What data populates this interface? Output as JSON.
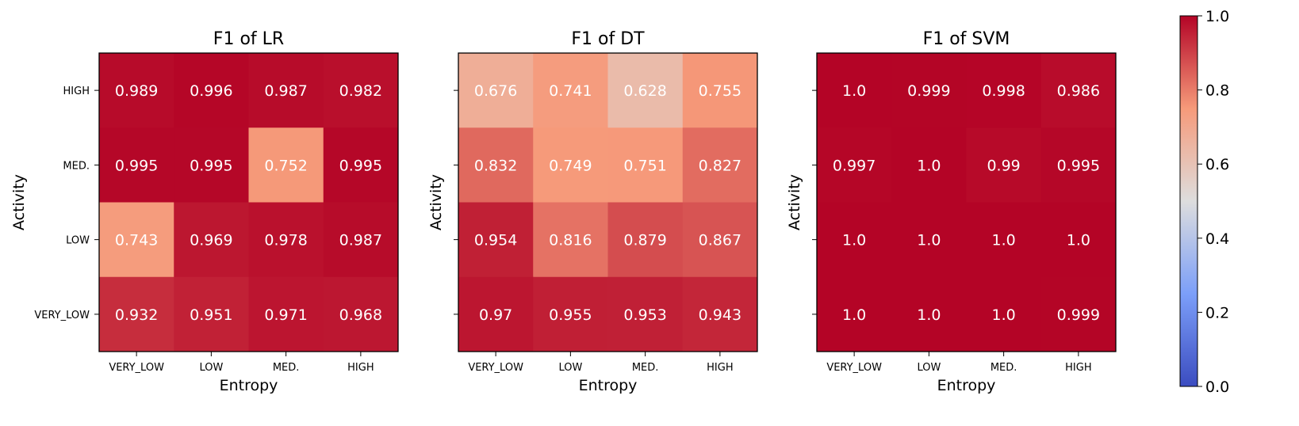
{
  "chart_data": {
    "type": "heatmap",
    "colormap": "coolwarm",
    "vmin": 0.0,
    "vmax": 1.0,
    "colorbar_ticks": [
      "0.0",
      "0.2",
      "0.4",
      "0.6",
      "0.8",
      "1.0"
    ],
    "panels": [
      {
        "title": "F1 of LR",
        "xlabel": "Entropy",
        "ylabel": "Activity",
        "x_categories": [
          "VERY_LOW",
          "LOW",
          "MED.",
          "HIGH"
        ],
        "y_categories": [
          "HIGH",
          "MED.",
          "LOW",
          "VERY_LOW"
        ],
        "values": [
          [
            0.989,
            0.996,
            0.987,
            0.982
          ],
          [
            0.995,
            0.995,
            0.752,
            0.995
          ],
          [
            0.743,
            0.969,
            0.978,
            0.987
          ],
          [
            0.932,
            0.951,
            0.971,
            0.968
          ]
        ],
        "labels": [
          [
            "0.989",
            "0.996",
            "0.987",
            "0.982"
          ],
          [
            "0.995",
            "0.995",
            "0.752",
            "0.995"
          ],
          [
            "0.743",
            "0.969",
            "0.978",
            "0.987"
          ],
          [
            "0.932",
            "0.951",
            "0.971",
            "0.968"
          ]
        ],
        "show_y_ticklabels": true
      },
      {
        "title": "F1 of DT",
        "xlabel": "Entropy",
        "ylabel": "Activity",
        "x_categories": [
          "VERY_LOW",
          "LOW",
          "MED.",
          "HIGH"
        ],
        "y_categories": [
          "HIGH",
          "MED.",
          "LOW",
          "VERY_LOW"
        ],
        "values": [
          [
            0.676,
            0.741,
            0.628,
            0.755
          ],
          [
            0.832,
            0.749,
            0.751,
            0.827
          ],
          [
            0.954,
            0.816,
            0.879,
            0.867
          ],
          [
            0.97,
            0.955,
            0.953,
            0.943
          ]
        ],
        "labels": [
          [
            "0.676",
            "0.741",
            "0.628",
            "0.755"
          ],
          [
            "0.832",
            "0.749",
            "0.751",
            "0.827"
          ],
          [
            "0.954",
            "0.816",
            "0.879",
            "0.867"
          ],
          [
            "0.97",
            "0.955",
            "0.953",
            "0.943"
          ]
        ],
        "show_y_ticklabels": false
      },
      {
        "title": "F1 of SVM",
        "xlabel": "Entropy",
        "ylabel": "Activity",
        "x_categories": [
          "VERY_LOW",
          "LOW",
          "MED.",
          "HIGH"
        ],
        "y_categories": [
          "HIGH",
          "MED.",
          "LOW",
          "VERY_LOW"
        ],
        "values": [
          [
            1.0,
            0.999,
            0.998,
            0.986
          ],
          [
            0.997,
            1.0,
            0.99,
            0.995
          ],
          [
            1.0,
            1.0,
            1.0,
            1.0
          ],
          [
            1.0,
            1.0,
            1.0,
            0.999
          ]
        ],
        "labels": [
          [
            "1.0",
            "0.999",
            "0.998",
            "0.986"
          ],
          [
            "0.997",
            "1.0",
            "0.99",
            "0.995"
          ],
          [
            "1.0",
            "1.0",
            "1.0",
            "1.0"
          ],
          [
            "1.0",
            "1.0",
            "1.0",
            "0.999"
          ]
        ],
        "show_y_ticklabels": false
      }
    ]
  }
}
